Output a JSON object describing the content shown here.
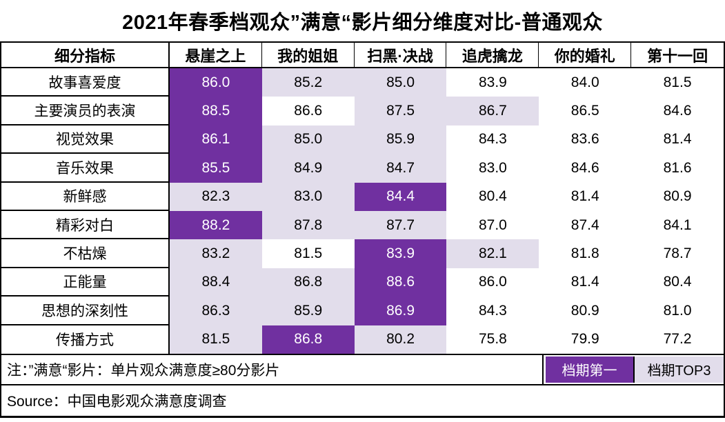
{
  "title": "2021年春季档观众”满意“影片细分维度对比-普通观众",
  "table": {
    "header": [
      "细分指标",
      "悬崖之上",
      "我的姐姐",
      "扫黑·决战",
      "追虎擒龙",
      "你的婚礼",
      "第十一回"
    ],
    "rows": [
      {
        "label": "故事喜爱度",
        "values": [
          "86.0",
          "85.2",
          "85.0",
          "83.9",
          "84.0",
          "81.5"
        ]
      },
      {
        "label": "主要演员的表演",
        "values": [
          "88.5",
          "86.6",
          "87.5",
          "86.7",
          "86.5",
          "84.6"
        ]
      },
      {
        "label": "视觉效果",
        "values": [
          "86.1",
          "85.0",
          "85.9",
          "84.3",
          "83.6",
          "81.4"
        ]
      },
      {
        "label": "音乐效果",
        "values": [
          "85.5",
          "84.9",
          "84.7",
          "83.0",
          "84.6",
          "81.6"
        ]
      },
      {
        "label": "新鲜感",
        "values": [
          "82.3",
          "83.0",
          "84.4",
          "80.4",
          "81.4",
          "80.9"
        ]
      },
      {
        "label": "精彩对白",
        "values": [
          "88.2",
          "87.8",
          "87.7",
          "87.0",
          "87.4",
          "84.1"
        ]
      },
      {
        "label": "不枯燥",
        "values": [
          "83.2",
          "81.5",
          "83.9",
          "82.1",
          "81.8",
          "78.7"
        ]
      },
      {
        "label": "正能量",
        "values": [
          "88.4",
          "86.8",
          "88.6",
          "86.0",
          "81.4",
          "80.4"
        ]
      },
      {
        "label": "思想的深刻性",
        "values": [
          "86.3",
          "85.9",
          "86.9",
          "84.3",
          "80.9",
          "81.0"
        ]
      },
      {
        "label": "传播方式",
        "values": [
          "81.5",
          "86.8",
          "80.2",
          "75.8",
          "79.9",
          "77.2"
        ]
      }
    ]
  },
  "chart_data": {
    "type": "table",
    "title": "2021年春季档观众”满意“影片细分维度对比-普通观众",
    "columns": [
      "悬崖之上",
      "我的姐姐",
      "扫黑·决战",
      "追虎擒龙",
      "你的婚礼",
      "第十一回"
    ],
    "row_labels": [
      "故事喜爱度",
      "主要演员的表演",
      "视觉效果",
      "音乐效果",
      "新鲜感",
      "精彩对白",
      "不枯燥",
      "正能量",
      "思想的深刻性",
      "传播方式"
    ],
    "values": [
      [
        86.0,
        85.2,
        85.0,
        83.9,
        84.0,
        81.5
      ],
      [
        88.5,
        86.6,
        87.5,
        86.7,
        86.5,
        84.6
      ],
      [
        86.1,
        85.0,
        85.9,
        84.3,
        83.6,
        81.4
      ],
      [
        85.5,
        84.9,
        84.7,
        83.0,
        84.6,
        81.6
      ],
      [
        82.3,
        83.0,
        84.4,
        80.4,
        81.4,
        80.9
      ],
      [
        88.2,
        87.8,
        87.7,
        87.0,
        87.4,
        84.1
      ],
      [
        83.2,
        81.5,
        83.9,
        82.1,
        81.8,
        78.7
      ],
      [
        88.4,
        86.8,
        88.6,
        86.0,
        81.4,
        80.4
      ],
      [
        86.3,
        85.9,
        86.9,
        84.3,
        80.9,
        81.0
      ],
      [
        81.5,
        86.8,
        80.2,
        75.8,
        79.9,
        77.2
      ]
    ],
    "highlight_rules": {
      "dark_purple": "档期第一 — highest value in each row",
      "light_purple": "档期TOP3 — 2nd and 3rd highest value in each row"
    }
  },
  "note": {
    "text": "注：”满意“影片：单片观众满意度≥80分影片"
  },
  "legend": [
    {
      "label": "档期第一",
      "color": "#7030A0",
      "text_color": "#FFFFFF"
    },
    {
      "label": "档期TOP3",
      "color": "#E2DDEB",
      "text_color": "#000000"
    }
  ],
  "source": "Source：中国电影观众满意度调查",
  "colors": {
    "dark_purple": "#7030A0",
    "light_purple": "#E2DDEB",
    "border": "#000000"
  }
}
